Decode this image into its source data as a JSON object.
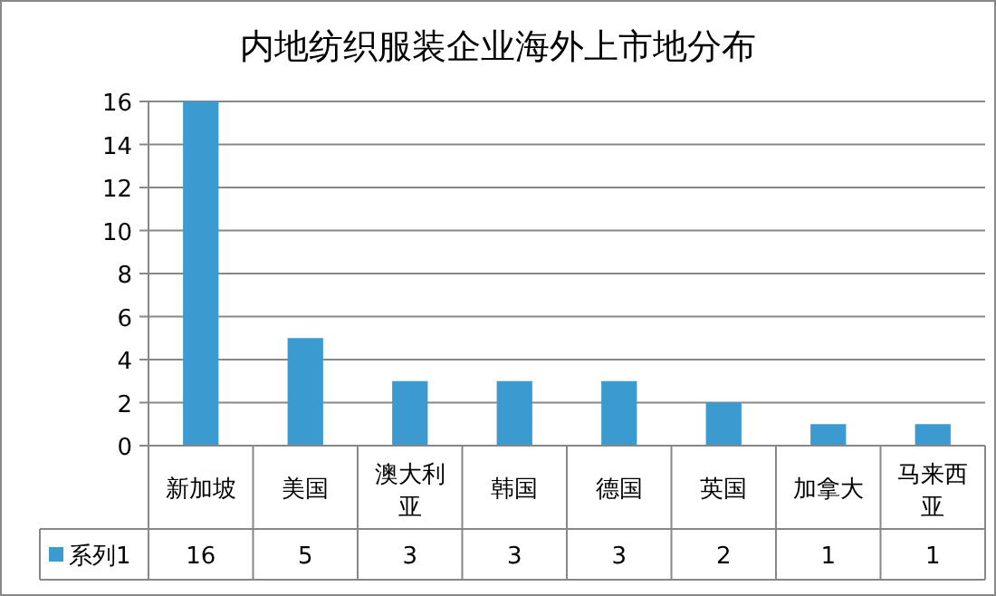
{
  "chart_data": {
    "type": "bar",
    "title": "内地纺织服装企业海外上市地分布",
    "categories": [
      "新加坡",
      "美国",
      "澳大利亚",
      "韩国",
      "德国",
      "英国",
      "加拿大",
      "马来西亚"
    ],
    "series": [
      {
        "name": "系列1",
        "color": "#3b9bd1",
        "values": [
          16,
          5,
          3,
          3,
          3,
          2,
          1,
          1
        ]
      }
    ],
    "ylim": [
      0,
      16
    ],
    "yticks": [
      0,
      2,
      4,
      6,
      8,
      10,
      12,
      14,
      16
    ],
    "grid": "y",
    "data_labels": true,
    "legend": "bottom"
  }
}
